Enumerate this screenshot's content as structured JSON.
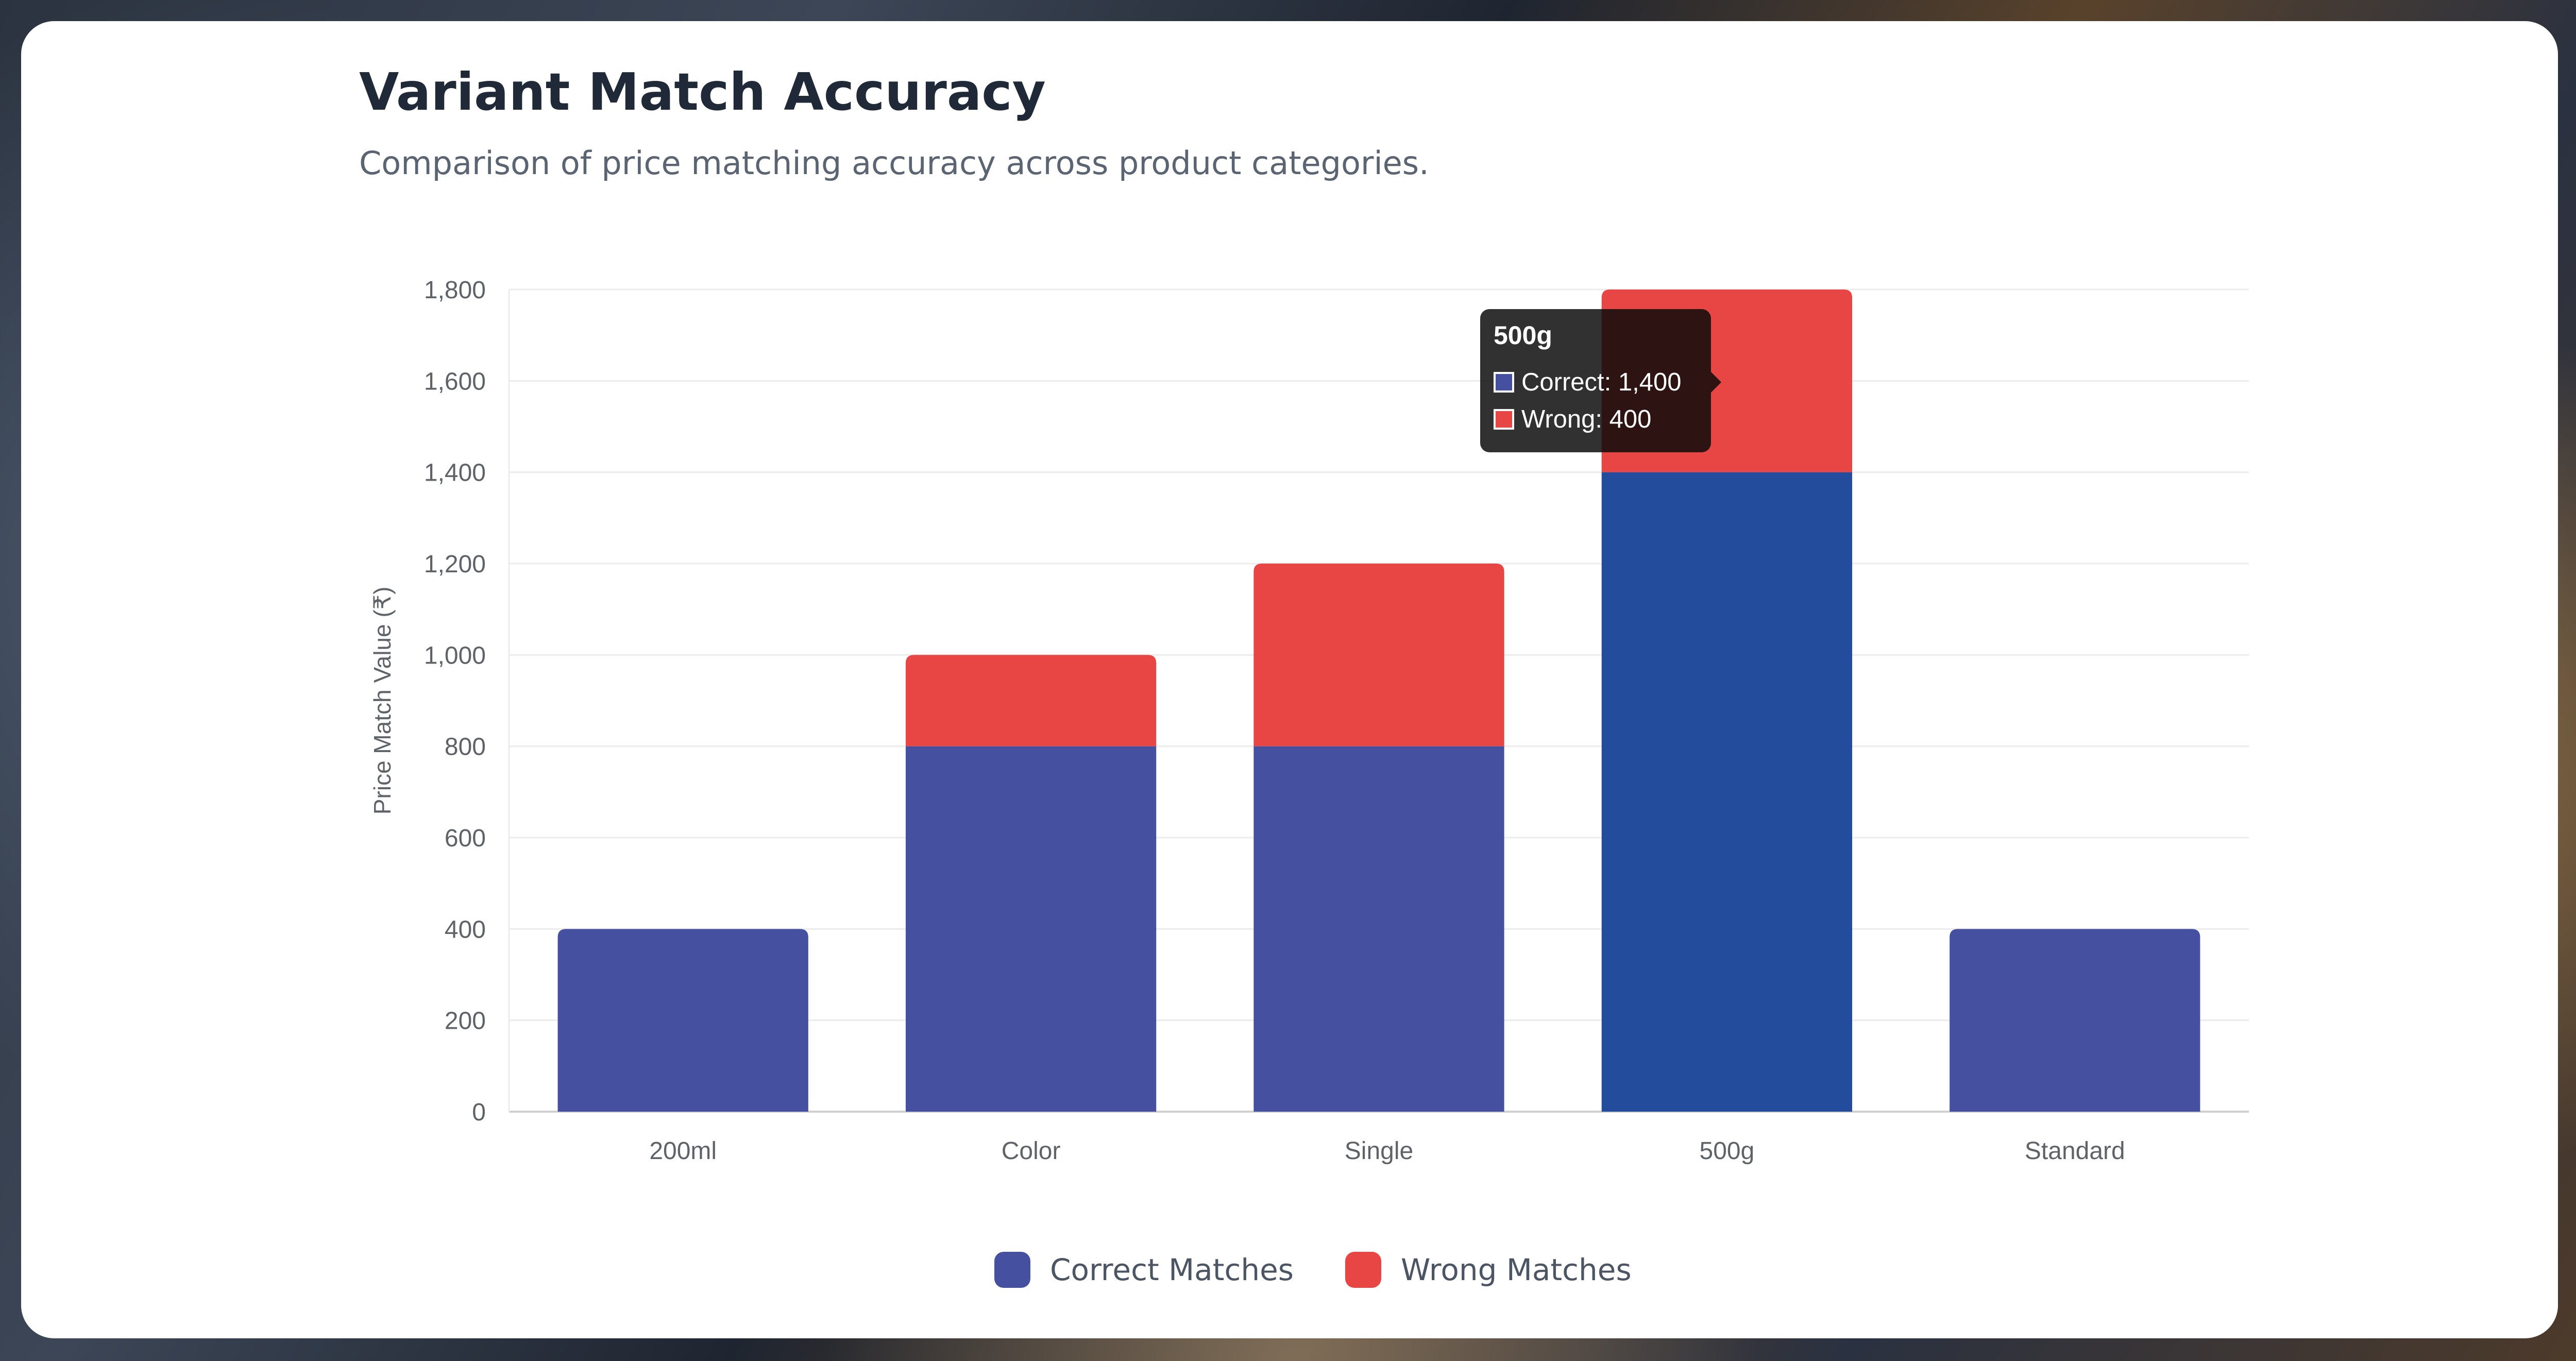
{
  "header": {
    "title": "Variant Match Accuracy",
    "subtitle": "Comparison of price matching accuracy across product categories."
  },
  "colors": {
    "correct": "#4650a0",
    "wrong": "#e84545",
    "correct_highlight": "#234c9c",
    "grid": "#ececec",
    "axis": "#d0d0d0"
  },
  "chart_data": {
    "type": "bar",
    "stacked": true,
    "categories": [
      "200ml",
      "Color",
      "Single",
      "500g",
      "Standard"
    ],
    "series": [
      {
        "name": "Correct Matches",
        "values": [
          400,
          800,
          800,
          1400,
          400
        ]
      },
      {
        "name": "Wrong Matches",
        "values": [
          0,
          200,
          400,
          400,
          0
        ]
      }
    ],
    "ylabel": "Price Match Value (₹)",
    "ylim": [
      0,
      1800
    ],
    "yticks": [
      0,
      200,
      400,
      600,
      800,
      1000,
      1200,
      1400,
      1600,
      1800
    ],
    "grid": true,
    "legend_position": "bottom",
    "highlighted_category": "500g"
  },
  "tooltip": {
    "title": "500g",
    "rows": [
      {
        "label": "Correct: 1,400"
      },
      {
        "label": "Wrong: 400"
      }
    ]
  },
  "legend": {
    "items": [
      {
        "label": "Correct Matches"
      },
      {
        "label": "Wrong Matches"
      }
    ]
  }
}
